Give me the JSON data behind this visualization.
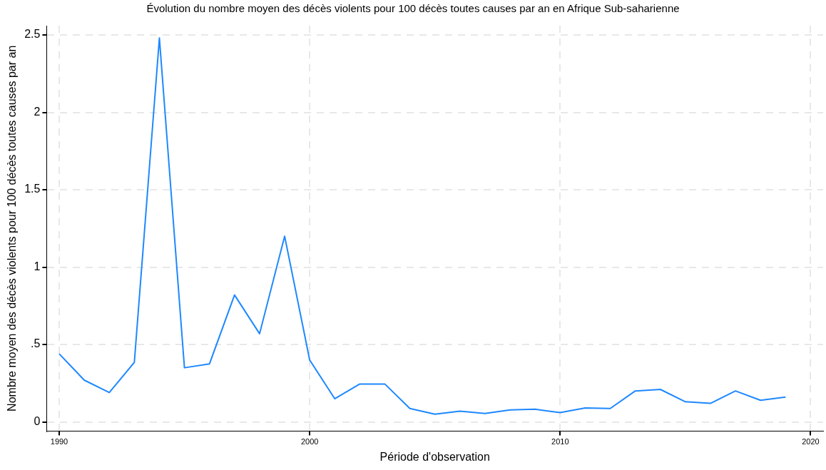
{
  "chart_data": {
    "type": "line",
    "title": "Évolution du nombre moyen des décès violents pour 100 décès toutes causes par an en Afrique Sub-saharienne",
    "xlabel": "Période d'observation",
    "ylabel": "Nombre moyen des décès violents pour 100 décès toutes causes par an",
    "x": [
      1990,
      1991,
      1992,
      1993,
      1994,
      1995,
      1996,
      1997,
      1998,
      1999,
      2000,
      2001,
      2002,
      2003,
      2004,
      2005,
      2006,
      2007,
      2008,
      2009,
      2010,
      2011,
      2012,
      2013,
      2014,
      2015,
      2016,
      2017,
      2018,
      2019
    ],
    "series": [
      {
        "color": "#1e88ff",
        "values": [
          0.44,
          0.27,
          0.19,
          0.385,
          2.48,
          0.35,
          0.375,
          0.82,
          0.57,
          1.2,
          0.4,
          0.15,
          0.245,
          0.245,
          0.087,
          0.05,
          0.07,
          0.055,
          0.078,
          0.082,
          0.06,
          0.09,
          0.087,
          0.2,
          0.21,
          0.13,
          0.12,
          0.2,
          0.14,
          0.16
        ]
      }
    ],
    "xlim": [
      1989.5,
      2020.5
    ],
    "xticks": [
      1990,
      2000,
      2010,
      2020
    ],
    "ylim": [
      -0.06,
      2.56
    ],
    "yticks": [
      0,
      {
        "value": 0.5,
        "label": ".5"
      },
      1,
      1.5,
      2,
      2.5
    ],
    "grid": true,
    "legend": false,
    "marker": "none",
    "line_style": "solid"
  }
}
